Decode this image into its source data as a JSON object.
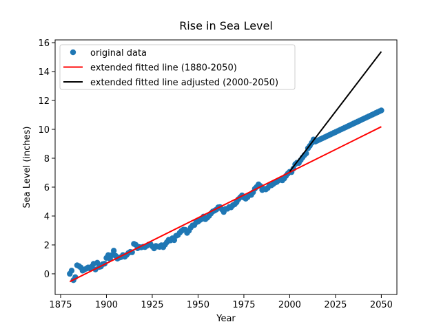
{
  "chart_data": {
    "type": "scatter",
    "title": "Rise in Sea Level",
    "x_label": "Year",
    "y_label": "Sea Level (inches)",
    "xlim": [
      1872,
      2058.5
    ],
    "ylim": [
      -1.43,
      16.19
    ],
    "xticks": [
      1875,
      1900,
      1925,
      1950,
      1975,
      2000,
      2025,
      2050
    ],
    "yticks": [
      0,
      2,
      4,
      6,
      8,
      10,
      12,
      14,
      16
    ],
    "legend": "upper left",
    "series": [
      {
        "name": "original data",
        "type": "scatter",
        "color": "#1f77b4",
        "x": [
          1880,
          1881,
          1882,
          1883,
          1884,
          1885,
          1886,
          1887,
          1888,
          1889,
          1890,
          1891,
          1892,
          1893,
          1894,
          1895,
          1896,
          1897,
          1898,
          1899,
          1900,
          1901,
          1902,
          1903,
          1904,
          1905,
          1906,
          1907,
          1908,
          1909,
          1910,
          1911,
          1912,
          1913,
          1914,
          1915,
          1916,
          1917,
          1918,
          1919,
          1920,
          1921,
          1922,
          1923,
          1924,
          1925,
          1926,
          1927,
          1928,
          1929,
          1930,
          1931,
          1932,
          1933,
          1934,
          1935,
          1936,
          1937,
          1938,
          1939,
          1940,
          1941,
          1942,
          1943,
          1944,
          1945,
          1946,
          1947,
          1948,
          1949,
          1950,
          1951,
          1952,
          1953,
          1954,
          1955,
          1956,
          1957,
          1958,
          1959,
          1960,
          1961,
          1962,
          1963,
          1964,
          1965,
          1966,
          1967,
          1968,
          1969,
          1970,
          1971,
          1972,
          1973,
          1974,
          1975,
          1976,
          1977,
          1978,
          1979,
          1980,
          1981,
          1982,
          1983,
          1984,
          1985,
          1986,
          1987,
          1988,
          1989,
          1990,
          1991,
          1992,
          1993,
          1994,
          1995,
          1996,
          1997,
          1998,
          1999,
          2000,
          2001,
          2002,
          2003,
          2004,
          2005,
          2006,
          2007,
          2008,
          2009,
          2010,
          2011,
          2012,
          2013,
          2014,
          2015,
          2016,
          2017,
          2018,
          2019,
          2020,
          2021,
          2022,
          2023,
          2024,
          2025,
          2026,
          2027,
          2028,
          2029,
          2030,
          2031,
          2032,
          2033,
          2034,
          2035,
          2036,
          2037,
          2038,
          2039,
          2040,
          2041,
          2042,
          2043,
          2044,
          2045,
          2046,
          2047,
          2048,
          2049,
          2050
        ],
        "values": [
          0,
          0.22,
          -0.44,
          -0.23,
          0.59,
          0.53,
          0.44,
          0.22,
          0.3,
          0.36,
          0.44,
          0.37,
          0.5,
          0.69,
          0.3,
          0.77,
          0.47,
          0.51,
          0.67,
          0.7,
          1.1,
          1.3,
          1.03,
          1.29,
          1.6,
          1.25,
          1.05,
          1.12,
          1.16,
          1.3,
          1.18,
          1.3,
          1.44,
          1.52,
          1.49,
          2.07,
          2.01,
          1.77,
          1.85,
          1.83,
          1.87,
          1.85,
          1.93,
          2.02,
          2.06,
          1.9,
          1.76,
          1.93,
          1.89,
          1.86,
          1.98,
          1.84,
          2.02,
          2.19,
          2.36,
          2.31,
          2.46,
          2.33,
          2.63,
          2.68,
          2.84,
          2.97,
          3.06,
          3.05,
          2.83,
          2.98,
          3.2,
          3.35,
          3.38,
          3.57,
          3.61,
          3.72,
          3.79,
          3.96,
          3.78,
          3.88,
          4.01,
          4.17,
          4.31,
          4.37,
          4.45,
          4.6,
          4.62,
          4.46,
          4.28,
          4.49,
          4.5,
          4.62,
          4.6,
          4.75,
          4.81,
          4.95,
          5.16,
          5.29,
          5.43,
          5.28,
          5.2,
          5.3,
          5.45,
          5.46,
          5.64,
          5.89,
          6.02,
          6.19,
          6.08,
          5.8,
          5.88,
          5.84,
          5.94,
          6.11,
          6.12,
          6.21,
          6.31,
          6.36,
          6.47,
          6.54,
          6.47,
          6.6,
          6.78,
          6.94,
          7.06,
          7.04,
          7.28,
          7.58,
          7.69,
          7.67,
          7.87,
          8.05,
          8.21,
          8.33,
          8.69,
          8.86,
          9.06,
          9.3,
          9.15,
          9.21,
          9.27,
          9.33,
          9.39,
          9.45,
          9.51,
          9.57,
          9.63,
          9.69,
          9.75,
          9.81,
          9.87,
          9.93,
          9.99,
          10.05,
          10.11,
          10.17,
          10.23,
          10.29,
          10.35,
          10.41,
          10.47,
          10.53,
          10.59,
          10.65,
          10.71,
          10.77,
          10.83,
          10.89,
          10.95,
          11.01,
          11.07,
          11.13,
          11.19,
          11.25,
          11.31
        ]
      },
      {
        "name": "extended fitted line (1880-2050)",
        "type": "line",
        "color": "#ff0000",
        "x": [
          1880,
          2050
        ],
        "values": [
          -0.54,
          10.18
        ]
      },
      {
        "name": "extended fitted line adjusted (2000-2050)",
        "type": "line",
        "color": "#000000",
        "x": [
          2000,
          2050
        ],
        "values": [
          7.08,
          15.38
        ]
      }
    ]
  }
}
